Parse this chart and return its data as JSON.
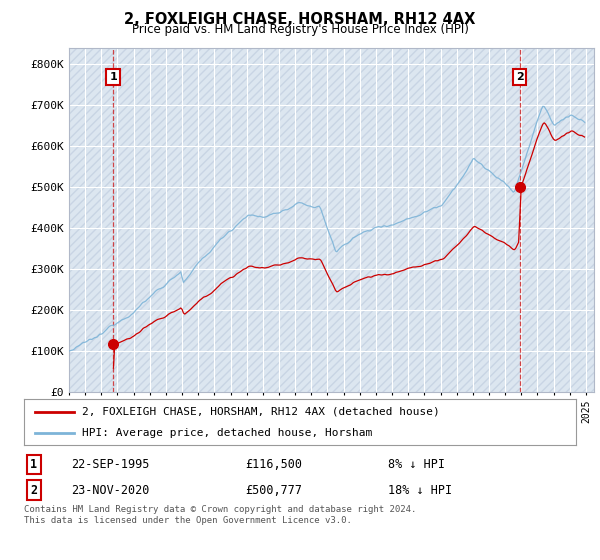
{
  "title": "2, FOXLEIGH CHASE, HORSHAM, RH12 4AX",
  "subtitle": "Price paid vs. HM Land Registry's House Price Index (HPI)",
  "xlim_start": 1993.0,
  "xlim_end": 2025.5,
  "ylim": [
    0,
    840000
  ],
  "yticks": [
    0,
    100000,
    200000,
    300000,
    400000,
    500000,
    600000,
    700000,
    800000
  ],
  "ytick_labels": [
    "£0",
    "£100K",
    "£200K",
    "£300K",
    "£400K",
    "£500K",
    "£600K",
    "£700K",
    "£800K"
  ],
  "sale1_date": 1995.73,
  "sale1_price": 116500,
  "sale1_label": "1",
  "sale2_date": 2020.9,
  "sale2_price": 500777,
  "sale2_label": "2",
  "hpi_color": "#7db4d8",
  "price_color": "#cc0000",
  "dashed_line_color": "#cc0000",
  "legend_line1": "2, FOXLEIGH CHASE, HORSHAM, RH12 4AX (detached house)",
  "legend_line2": "HPI: Average price, detached house, Horsham",
  "info1_label": "1",
  "info1_date": "22-SEP-1995",
  "info1_price": "£116,500",
  "info1_hpi": "8% ↓ HPI",
  "info2_label": "2",
  "info2_date": "23-NOV-2020",
  "info2_price": "£500,777",
  "info2_hpi": "18% ↓ HPI",
  "footer": "Contains HM Land Registry data © Crown copyright and database right 2024.\nThis data is licensed under the Open Government Licence v3.0.",
  "background_color": "#ffffff",
  "plot_bg_color": "#e8eef5",
  "grid_color": "#ffffff",
  "hatch_pattern": "////",
  "hatch_bg_color": "#dce6f0",
  "hatch_edge_color": "#c8d4e4"
}
